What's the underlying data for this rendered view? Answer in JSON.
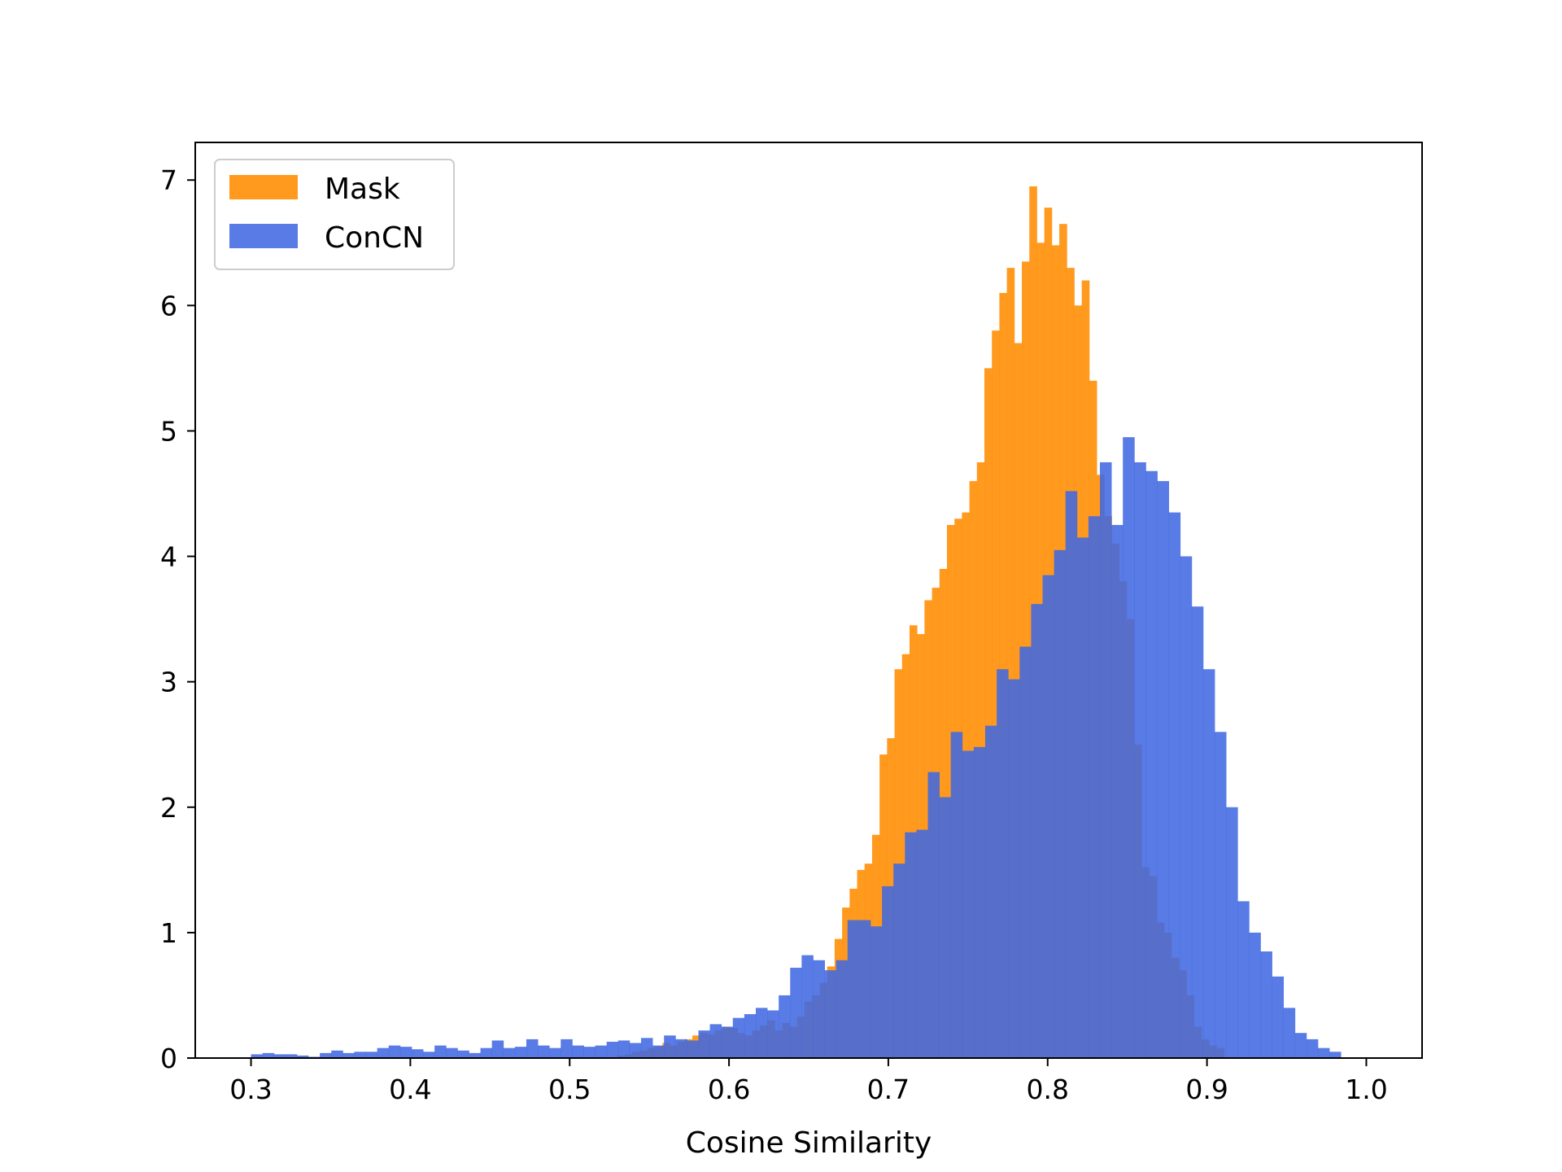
{
  "chart_data": {
    "type": "histogram",
    "title": "",
    "xlabel": "Cosine Similarity",
    "ylabel": "",
    "xlim": [
      0.265,
      1.035
    ],
    "ylim": [
      0,
      7.3
    ],
    "xticks": [
      0.3,
      0.4,
      0.5,
      0.6,
      0.7,
      0.8,
      0.9,
      1.0
    ],
    "xtick_labels": [
      "0.3",
      "0.4",
      "0.5",
      "0.6",
      "0.7",
      "0.8",
      "0.9",
      "1.0"
    ],
    "yticks": [
      0,
      1,
      2,
      3,
      4,
      5,
      6,
      7
    ],
    "ytick_labels": [
      "0",
      "1",
      "2",
      "3",
      "4",
      "5",
      "6",
      "7"
    ],
    "legend_position": "top-left",
    "grid": false,
    "series": [
      {
        "name": "Mask",
        "color": "#ff8c00",
        "opacity": 0.88,
        "bin_start": 0.53,
        "bin_width": 0.0047,
        "values": [
          0.02,
          0.03,
          0.05,
          0.06,
          0.08,
          0.09,
          0.12,
          0.1,
          0.13,
          0.15,
          0.18,
          0.2,
          0.19,
          0.22,
          0.25,
          0.24,
          0.2,
          0.18,
          0.22,
          0.26,
          0.3,
          0.22,
          0.28,
          0.25,
          0.33,
          0.45,
          0.5,
          0.6,
          0.73,
          0.95,
          1.2,
          1.35,
          1.5,
          1.55,
          1.78,
          2.42,
          2.55,
          3.1,
          3.22,
          3.45,
          3.38,
          3.65,
          3.75,
          3.9,
          4.25,
          4.3,
          4.35,
          4.6,
          4.75,
          5.5,
          5.8,
          6.1,
          6.3,
          5.7,
          6.35,
          6.95,
          6.5,
          6.78,
          6.48,
          6.65,
          6.3,
          6.0,
          6.2,
          5.4,
          4.65,
          4.32,
          4.1,
          3.8,
          3.5,
          2.5,
          1.52,
          1.45,
          1.08,
          1.0,
          0.8,
          0.7,
          0.5,
          0.25,
          0.15,
          0.1,
          0.08
        ],
        "values_note": "approximate density read from figure"
      },
      {
        "name": "ConCN",
        "color": "#4169e1",
        "opacity": 0.88,
        "bin_start": 0.3,
        "bin_width": 0.0072,
        "values": [
          0.03,
          0.04,
          0.03,
          0.03,
          0.02,
          0.01,
          0.04,
          0.06,
          0.04,
          0.05,
          0.05,
          0.08,
          0.1,
          0.09,
          0.07,
          0.05,
          0.1,
          0.08,
          0.06,
          0.04,
          0.08,
          0.14,
          0.08,
          0.09,
          0.15,
          0.1,
          0.08,
          0.15,
          0.1,
          0.09,
          0.1,
          0.13,
          0.14,
          0.12,
          0.16,
          0.1,
          0.18,
          0.15,
          0.14,
          0.22,
          0.27,
          0.25,
          0.32,
          0.35,
          0.4,
          0.38,
          0.5,
          0.72,
          0.82,
          0.78,
          0.7,
          0.78,
          1.1,
          1.1,
          1.05,
          1.37,
          1.55,
          1.8,
          1.82,
          2.28,
          2.08,
          2.6,
          2.45,
          2.48,
          2.65,
          3.1,
          3.02,
          3.28,
          3.62,
          3.85,
          4.05,
          4.52,
          4.15,
          4.32,
          4.75,
          4.25,
          4.95,
          4.75,
          4.68,
          4.6,
          4.35,
          4.0,
          3.6,
          3.1,
          2.6,
          2.0,
          1.25,
          1.0,
          0.85,
          0.65,
          0.4,
          0.2,
          0.15,
          0.08,
          0.05
        ],
        "values_note": "approximate density read from figure"
      }
    ]
  }
}
